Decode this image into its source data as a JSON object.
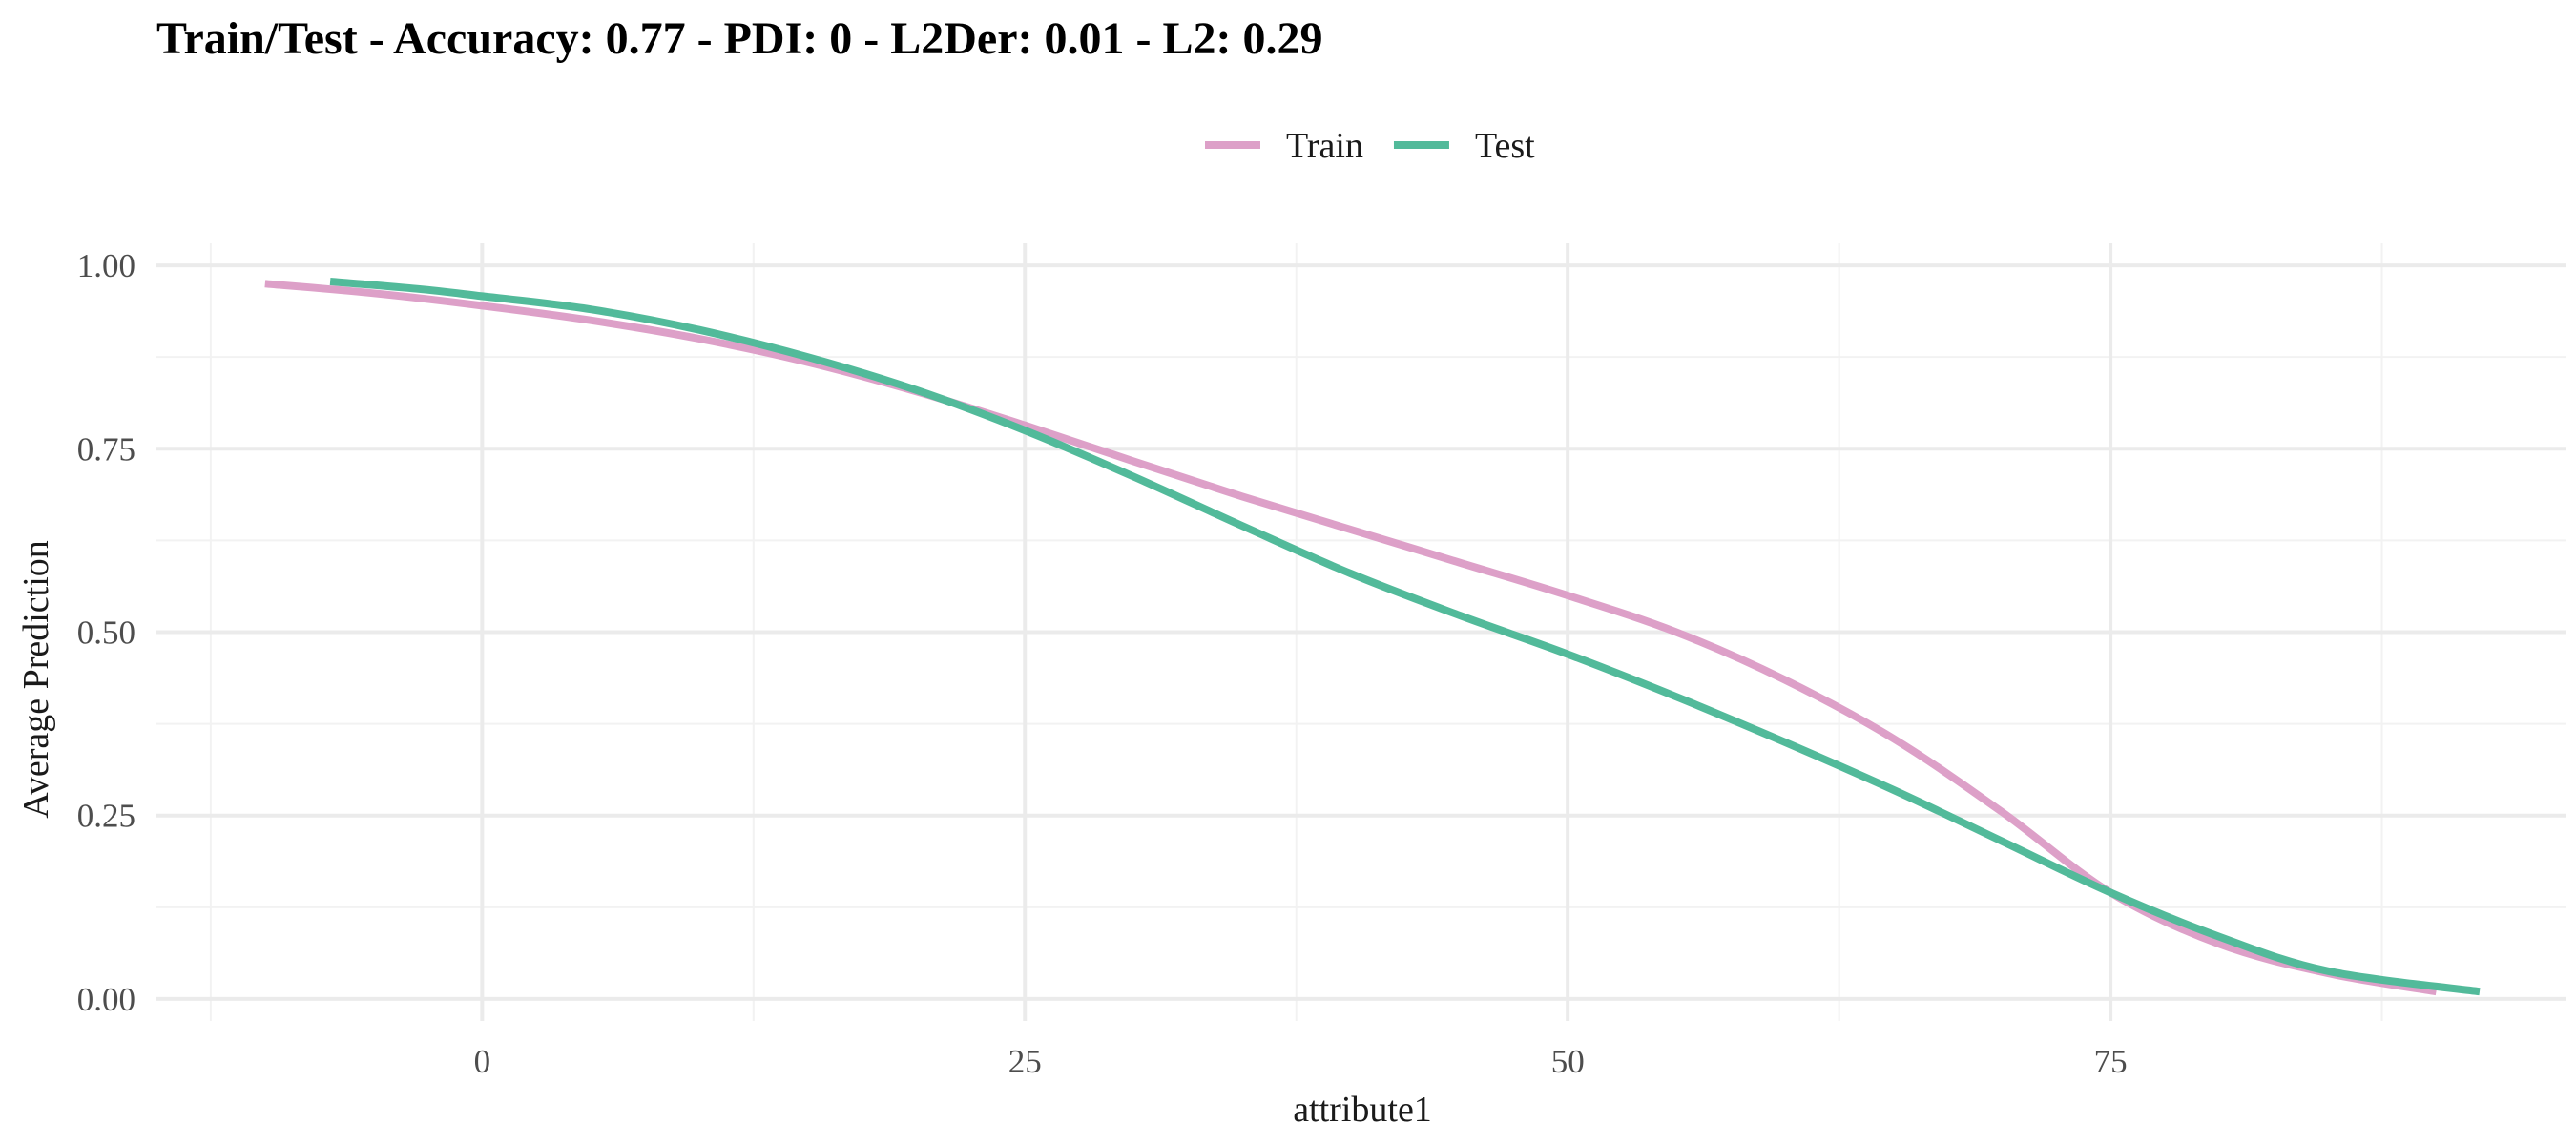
{
  "chart_data": {
    "type": "line",
    "title": "Train/Test - Accuracy: 0.77 - PDI: 0 - L2Der: 0.01 - L2: 0.29",
    "xlabel": "attribute1",
    "ylabel": "Average Prediction",
    "xlim": [
      -15,
      96
    ],
    "ylim": [
      -0.03,
      1.03
    ],
    "x_ticks": [
      0,
      25,
      50,
      75
    ],
    "x_tick_labels": [
      "0",
      "25",
      "50",
      "75"
    ],
    "y_ticks": [
      0,
      0.25,
      0.5,
      0.75,
      1
    ],
    "y_tick_labels": [
      "0.00",
      "0.25",
      "0.50",
      "0.75",
      "1.00"
    ],
    "grid": true,
    "legend_position": "top",
    "series": [
      {
        "name": "Train",
        "color": "#DDA0C8",
        "x": [
          -10,
          -5,
          0,
          5,
          10,
          15,
          20,
          25,
          30,
          35,
          40,
          45,
          50,
          55,
          60,
          65,
          70,
          75,
          80,
          85,
          90
        ],
        "y": [
          0.975,
          0.962,
          0.945,
          0.925,
          0.9,
          0.868,
          0.828,
          0.782,
          0.733,
          0.685,
          0.64,
          0.595,
          0.55,
          0.5,
          0.435,
          0.355,
          0.255,
          0.145,
          0.075,
          0.035,
          0.01
        ]
      },
      {
        "name": "Test",
        "color": "#52BA9A",
        "x": [
          -7,
          -3,
          0,
          5,
          10,
          15,
          20,
          25,
          30,
          35,
          40,
          45,
          50,
          55,
          60,
          65,
          70,
          75,
          80,
          85,
          92
        ],
        "y": [
          0.978,
          0.968,
          0.958,
          0.94,
          0.912,
          0.875,
          0.83,
          0.775,
          0.712,
          0.645,
          0.58,
          0.523,
          0.47,
          0.412,
          0.35,
          0.285,
          0.215,
          0.145,
          0.085,
          0.038,
          0.01
        ]
      }
    ]
  }
}
